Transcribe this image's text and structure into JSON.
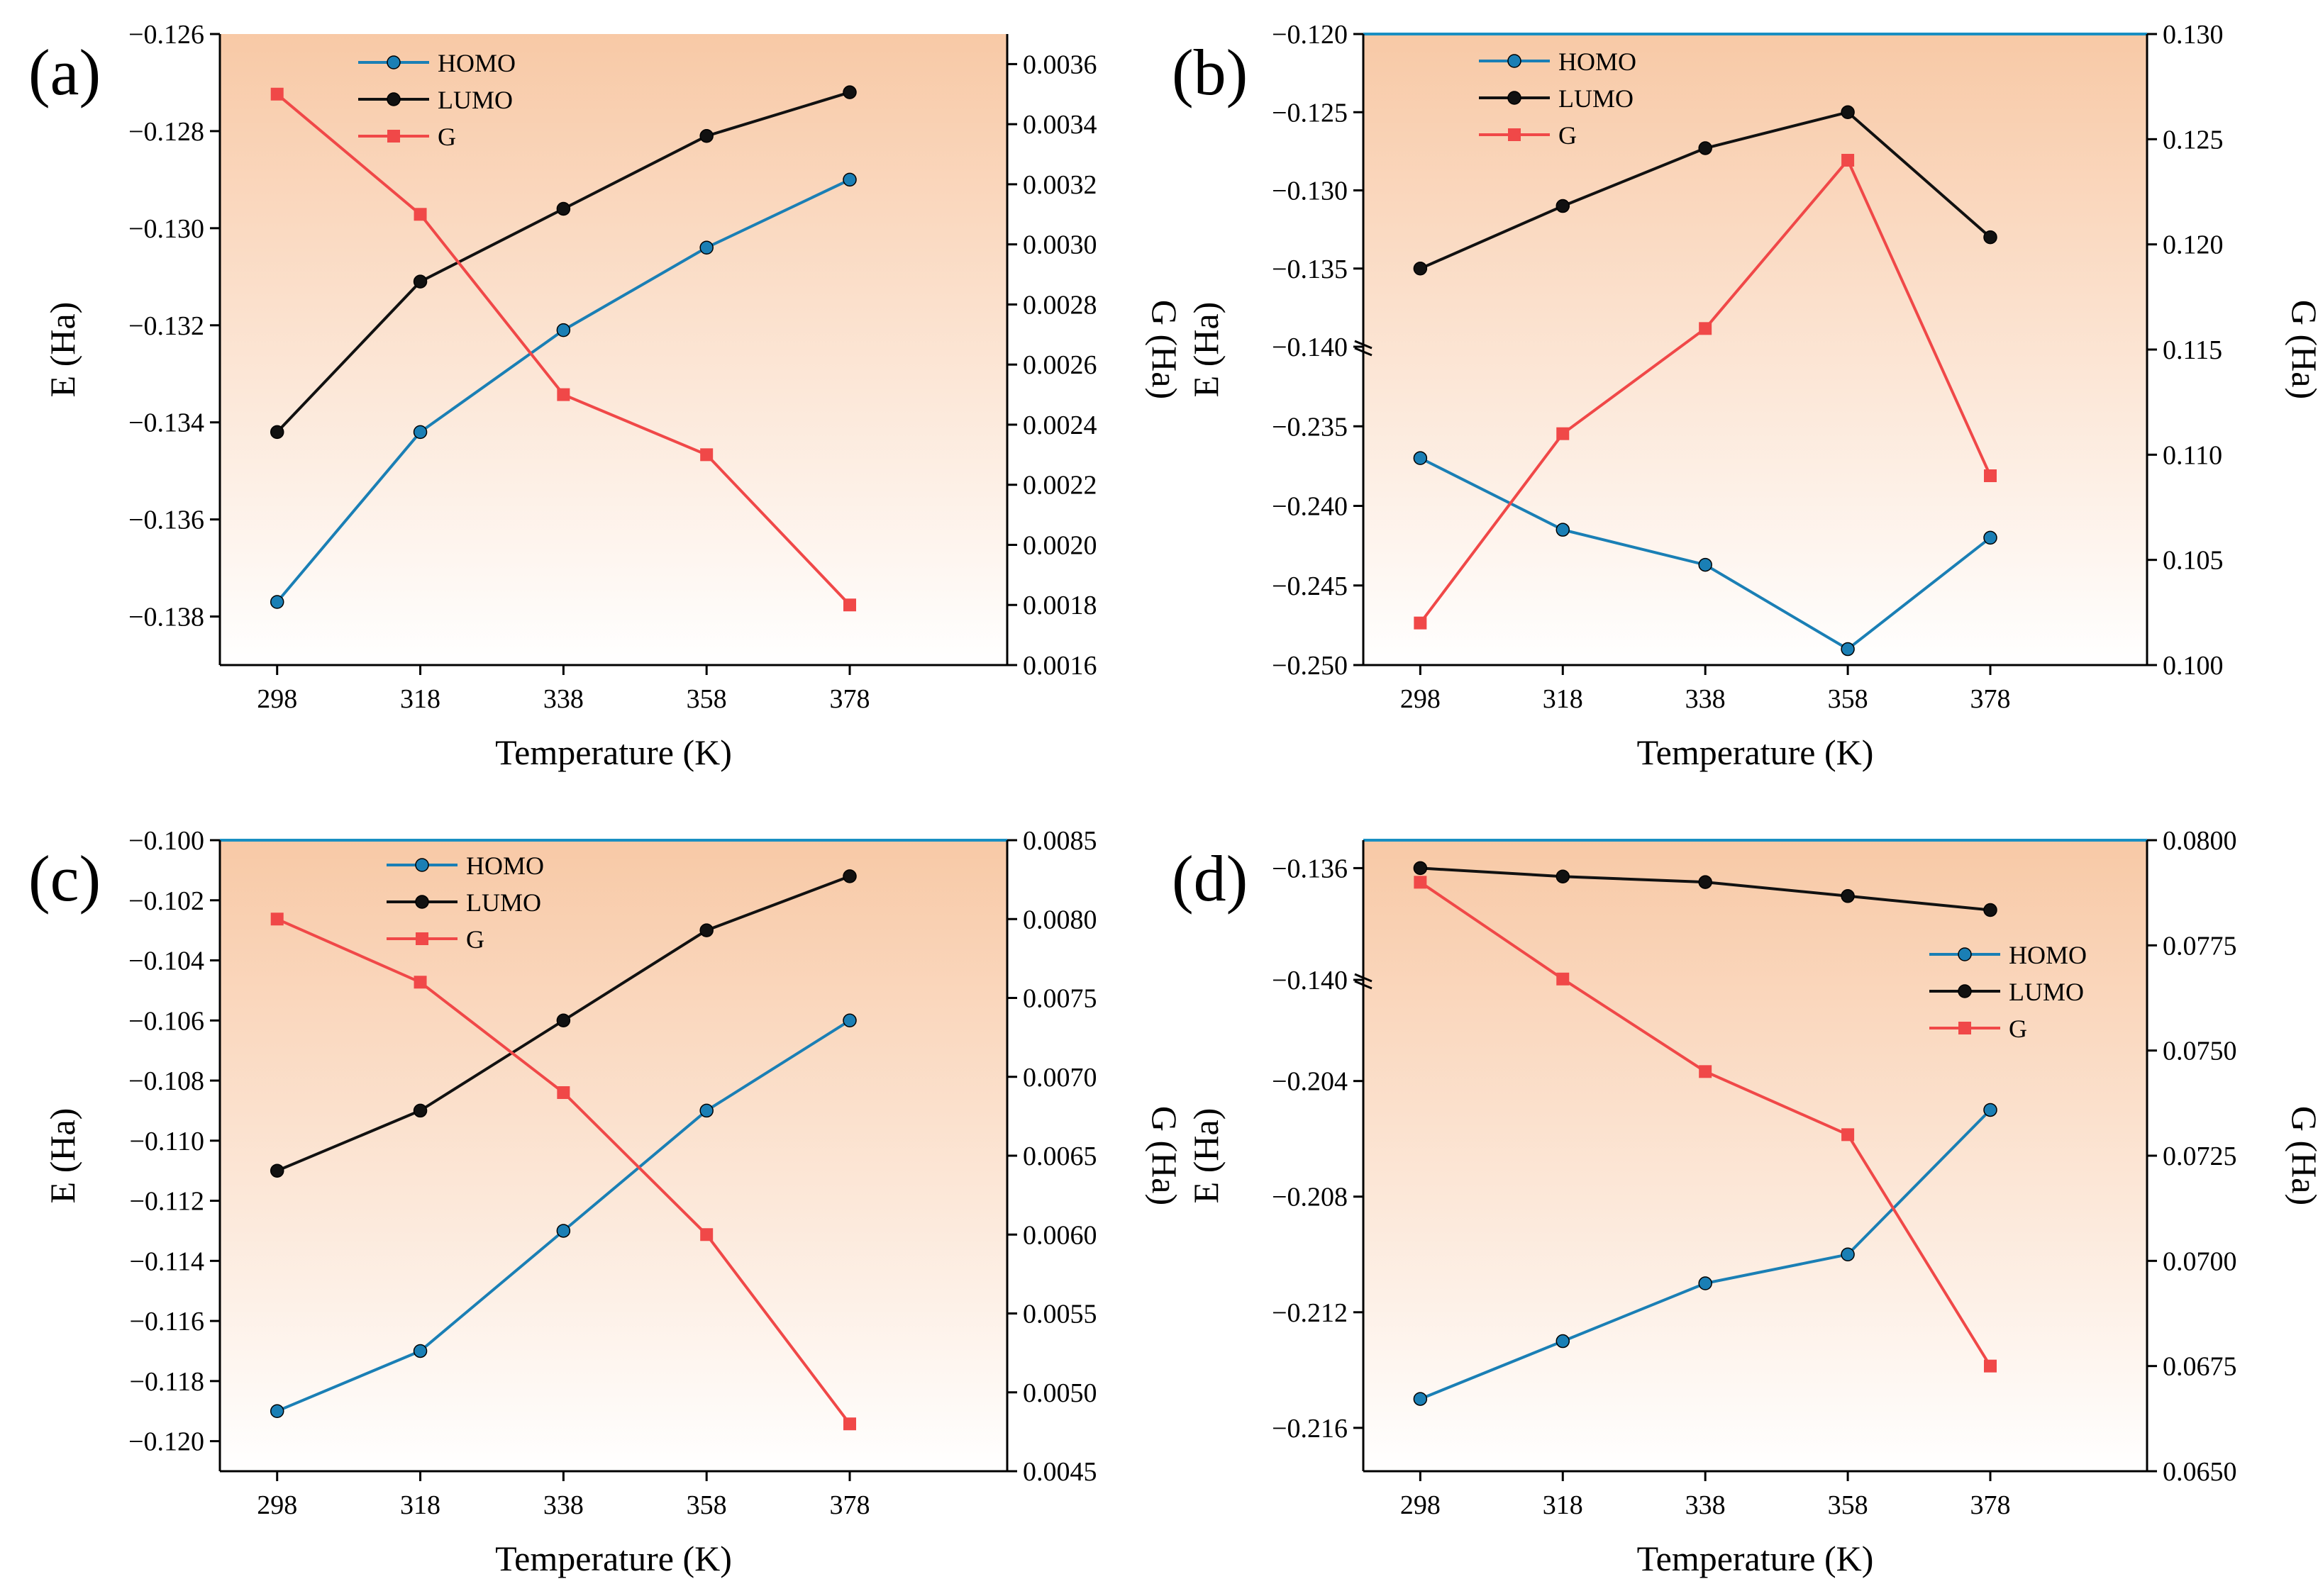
{
  "figure": {
    "colors": {
      "homo": "#1a7fb5",
      "lumo": "#111111",
      "g": "#f04848",
      "bg_top": "#f8c9a6",
      "bg_bottom": "#ffffff",
      "top_line": "#1a8fc2"
    }
  },
  "chart_data": [
    {
      "panel": "(a)",
      "type": "line",
      "x": [
        298,
        318,
        338,
        358,
        378
      ],
      "xlabel": "Temperature (K)",
      "ylabel": "E (Ha)",
      "ylabel_right": "G (Ha)",
      "xlim": [
        290,
        400
      ],
      "ylim": [
        -0.139,
        -0.126
      ],
      "y_ticks": [
        -0.126,
        -0.128,
        -0.13,
        -0.132,
        -0.134,
        -0.136,
        -0.138
      ],
      "y_tick_labels": [
        "−0.126",
        "−0.128",
        "−0.130",
        "−0.132",
        "−0.134",
        "−0.136",
        "−0.138"
      ],
      "ylim_right": [
        0.0016,
        0.0037
      ],
      "y2_ticks": [
        0.0016,
        0.0018,
        0.002,
        0.0022,
        0.0024,
        0.0026,
        0.0028,
        0.003,
        0.0032,
        0.0034,
        0.0036
      ],
      "y2_tick_labels": [
        "0.0016",
        "0.0018",
        "0.0020",
        "0.0022",
        "0.0024",
        "0.0026",
        "0.0028",
        "0.0030",
        "0.0032",
        "0.0034",
        "0.0036"
      ],
      "legend": [
        "HOMO",
        "LUMO",
        "G"
      ],
      "legend_position": "top-center",
      "series": [
        {
          "name": "HOMO",
          "axis": "left",
          "values": [
            -0.1377,
            -0.1342,
            -0.1321,
            -0.1304,
            -0.129
          ]
        },
        {
          "name": "LUMO",
          "axis": "left",
          "values": [
            -0.1342,
            -0.1311,
            -0.1296,
            -0.1281,
            -0.1272
          ]
        },
        {
          "name": "G",
          "axis": "right",
          "values": [
            0.0035,
            0.0031,
            0.0025,
            0.0023,
            0.0018
          ]
        }
      ]
    },
    {
      "panel": "(b)",
      "type": "line",
      "x": [
        298,
        318,
        338,
        358,
        378
      ],
      "xlabel": "Temperature (K)",
      "ylabel": "E (Ha)",
      "ylabel_right": "G (Ha)",
      "xlim": [
        290,
        400
      ],
      "broken_axis": true,
      "ylim_upper": [
        -0.14,
        -0.12
      ],
      "ylim_lower": [
        -0.25,
        -0.23
      ],
      "y_ticks_upper": [
        -0.12,
        -0.125,
        -0.13,
        -0.135,
        -0.14
      ],
      "y_tick_labels_upper": [
        "−0.120",
        "−0.125",
        "−0.130",
        "−0.135",
        "−0.140"
      ],
      "y_ticks_lower": [
        -0.235,
        -0.24,
        -0.245,
        -0.25
      ],
      "y_tick_labels_lower": [
        "−0.235",
        "−0.240",
        "−0.245",
        "−0.250"
      ],
      "ylim_right": [
        0.1,
        0.13
      ],
      "y2_ticks": [
        0.1,
        0.105,
        0.11,
        0.115,
        0.12,
        0.125,
        0.13
      ],
      "y2_tick_labels": [
        "0.100",
        "0.105",
        "0.110",
        "0.115",
        "0.120",
        "0.125",
        "0.130"
      ],
      "legend": [
        "HOMO",
        "LUMO",
        "G"
      ],
      "legend_position": "top-left",
      "series": [
        {
          "name": "HOMO",
          "axis": "left",
          "values": [
            -0.237,
            -0.2415,
            -0.2437,
            -0.249,
            -0.242
          ]
        },
        {
          "name": "LUMO",
          "axis": "left",
          "values": [
            -0.135,
            -0.131,
            -0.1273,
            -0.125,
            -0.133
          ]
        },
        {
          "name": "G",
          "axis": "right",
          "values": [
            0.102,
            0.111,
            0.116,
            0.124,
            0.109
          ]
        }
      ]
    },
    {
      "panel": "(c)",
      "type": "line",
      "x": [
        298,
        318,
        338,
        358,
        378
      ],
      "xlabel": "Temperature (K)",
      "ylabel": "E (Ha)",
      "ylabel_right": "G (Ha)",
      "xlim": [
        290,
        400
      ],
      "ylim": [
        -0.121,
        -0.1
      ],
      "y_ticks": [
        -0.1,
        -0.102,
        -0.104,
        -0.106,
        -0.108,
        -0.11,
        -0.112,
        -0.114,
        -0.116,
        -0.118,
        -0.12
      ],
      "y_tick_labels": [
        "−0.100",
        "−0.102",
        "−0.104",
        "−0.106",
        "−0.108",
        "−0.110",
        "−0.112",
        "−0.114",
        "−0.116",
        "−0.118",
        "−0.120"
      ],
      "ylim_right": [
        0.0045,
        0.0085
      ],
      "y2_ticks": [
        0.0045,
        0.005,
        0.0055,
        0.006,
        0.0065,
        0.007,
        0.0075,
        0.008,
        0.0085
      ],
      "y2_tick_labels": [
        "0.0045",
        "0.0050",
        "0.0055",
        "0.0060",
        "0.0065",
        "0.0070",
        "0.0075",
        "0.0080",
        "0.0085"
      ],
      "legend": [
        "HOMO",
        "LUMO",
        "G"
      ],
      "legend_position": "top-center",
      "series": [
        {
          "name": "HOMO",
          "axis": "left",
          "values": [
            -0.119,
            -0.117,
            -0.113,
            -0.109,
            -0.106
          ]
        },
        {
          "name": "LUMO",
          "axis": "left",
          "values": [
            -0.111,
            -0.109,
            -0.106,
            -0.103,
            -0.1012
          ]
        },
        {
          "name": "G",
          "axis": "right",
          "values": [
            0.008,
            0.0076,
            0.0069,
            0.006,
            0.0048
          ]
        }
      ]
    },
    {
      "panel": "(d)",
      "type": "line",
      "x": [
        298,
        318,
        338,
        358,
        378
      ],
      "xlabel": "Temperature (K)",
      "ylabel": "E (Ha)",
      "ylabel_right": "G (Ha)",
      "xlim": [
        290,
        400
      ],
      "broken_axis": true,
      "ylim_upper": [
        -0.14,
        -0.135
      ],
      "ylim_lower": [
        -0.2175,
        -0.2005
      ],
      "y_ticks_upper": [
        -0.136,
        -0.14
      ],
      "y_tick_labels_upper": [
        "−0.136",
        "−0.140"
      ],
      "y_ticks_lower": [
        -0.204,
        -0.208,
        -0.212,
        -0.216
      ],
      "y_tick_labels_lower": [
        "−0.204",
        "−0.208",
        "−0.212",
        "−0.216"
      ],
      "ylim_right": [
        0.065,
        0.08
      ],
      "y2_ticks": [
        0.065,
        0.0675,
        0.07,
        0.0725,
        0.075,
        0.0775,
        0.08
      ],
      "y2_tick_labels": [
        "0.0650",
        "0.0675",
        "0.0700",
        "0.0725",
        "0.0750",
        "0.0775",
        "0.0800"
      ],
      "legend": [
        "HOMO",
        "LUMO",
        "G"
      ],
      "legend_position": "right",
      "series": [
        {
          "name": "HOMO",
          "axis": "left",
          "values": [
            -0.215,
            -0.213,
            -0.211,
            -0.21,
            -0.205
          ]
        },
        {
          "name": "LUMO",
          "axis": "left",
          "values": [
            -0.136,
            -0.1363,
            -0.1365,
            -0.137,
            -0.1375
          ]
        },
        {
          "name": "G",
          "axis": "right",
          "values": [
            0.079,
            0.0767,
            0.0745,
            0.073,
            0.0675
          ]
        }
      ]
    }
  ]
}
